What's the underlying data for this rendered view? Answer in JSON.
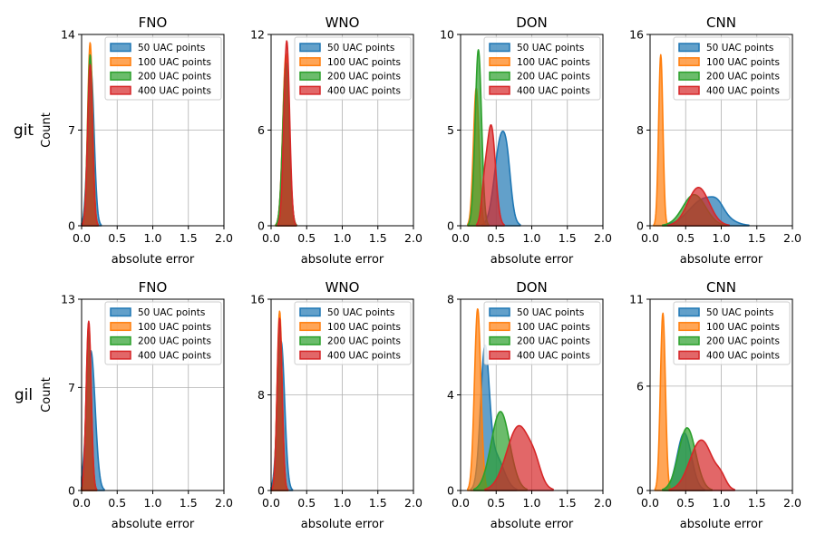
{
  "figure": {
    "row_labels": [
      "git",
      "gil"
    ],
    "ylabel": "Count",
    "xlabel": "absolute error",
    "legend_entries": [
      "50 UAC points",
      "100 UAC points",
      "200 UAC points",
      "400 UAC points"
    ],
    "series_colors": [
      "#1f77b4",
      "#ff7f0e",
      "#2ca02c",
      "#d62728"
    ]
  },
  "chart_data": [
    {
      "type": "area",
      "row": "git",
      "title": "FNO",
      "xlabel": "absolute error",
      "ylabel": "Count",
      "xlim": [
        0,
        2.0
      ],
      "ylim": [
        0,
        14
      ],
      "xticks": [
        "0.0",
        "0.5",
        "1.0",
        "1.5",
        "2.0"
      ],
      "yticks": [
        "0",
        "7",
        "14"
      ],
      "grid": true,
      "legend_position": "top-right",
      "series": [
        {
          "name": "50 UAC points",
          "peaks": [
            {
              "center": 0.13,
              "width": 0.045,
              "height": 11.5
            }
          ]
        },
        {
          "name": "100 UAC points",
          "peaks": [
            {
              "center": 0.12,
              "width": 0.035,
              "height": 13.4
            }
          ]
        },
        {
          "name": "200 UAC points",
          "peaks": [
            {
              "center": 0.12,
              "width": 0.035,
              "height": 12.5
            }
          ]
        },
        {
          "name": "400 UAC points",
          "peaks": [
            {
              "center": 0.12,
              "width": 0.035,
              "height": 11.8
            }
          ]
        }
      ]
    },
    {
      "type": "area",
      "row": "git",
      "title": "WNO",
      "xlabel": "absolute error",
      "ylabel": "",
      "xlim": [
        0,
        2.0
      ],
      "ylim": [
        0,
        12
      ],
      "xticks": [
        "0.0",
        "0.5",
        "1.0",
        "1.5",
        "2.0"
      ],
      "yticks": [
        "0",
        "6",
        "12"
      ],
      "grid": true,
      "legend_position": "top-right",
      "series": [
        {
          "name": "50 UAC points",
          "peaks": [
            {
              "center": 0.21,
              "width": 0.045,
              "height": 10.5
            }
          ]
        },
        {
          "name": "100 UAC points",
          "peaks": [
            {
              "center": 0.21,
              "width": 0.045,
              "height": 10.8
            }
          ]
        },
        {
          "name": "200 UAC points",
          "peaks": [
            {
              "center": 0.21,
              "width": 0.045,
              "height": 10.2
            }
          ]
        },
        {
          "name": "400 UAC points",
          "peaks": [
            {
              "center": 0.22,
              "width": 0.04,
              "height": 11.6
            }
          ]
        }
      ]
    },
    {
      "type": "area",
      "row": "git",
      "title": "DON",
      "xlabel": "absolute error",
      "ylabel": "",
      "xlim": [
        0,
        2.0
      ],
      "ylim": [
        0,
        10
      ],
      "xticks": [
        "0.0",
        "0.5",
        "1.0",
        "1.5",
        "2.0"
      ],
      "yticks": [
        "0",
        "5",
        "10"
      ],
      "grid": true,
      "legend_position": "top-right",
      "series": [
        {
          "name": "50 UAC points",
          "peaks": [
            {
              "center": 0.57,
              "width": 0.09,
              "height": 4.6
            },
            {
              "center": 0.66,
              "width": 0.05,
              "height": 1.2
            }
          ]
        },
        {
          "name": "100 UAC points",
          "peaks": [
            {
              "center": 0.22,
              "width": 0.04,
              "height": 7.2
            }
          ]
        },
        {
          "name": "200 UAC points",
          "peaks": [
            {
              "center": 0.25,
              "width": 0.045,
              "height": 9.2
            }
          ]
        },
        {
          "name": "400 UAC points",
          "peaks": [
            {
              "center": 0.43,
              "width": 0.06,
              "height": 5.2
            },
            {
              "center": 0.33,
              "width": 0.04,
              "height": 1.5
            }
          ]
        }
      ]
    },
    {
      "type": "area",
      "row": "git",
      "title": "CNN",
      "xlabel": "absolute error",
      "ylabel": "",
      "xlim": [
        0,
        2.0
      ],
      "ylim": [
        0,
        16
      ],
      "xticks": [
        "0.0",
        "0.5",
        "1.0",
        "1.5",
        "2.0"
      ],
      "yticks": [
        "0",
        "8",
        "16"
      ],
      "grid": true,
      "legend_position": "top-right",
      "series": [
        {
          "name": "50 UAC points",
          "peaks": [
            {
              "center": 0.78,
              "width": 0.22,
              "height": 2.3
            },
            {
              "center": 0.95,
              "width": 0.08,
              "height": 0.5
            }
          ]
        },
        {
          "name": "100 UAC points",
          "peaks": [
            {
              "center": 0.15,
              "width": 0.03,
              "height": 14.3
            }
          ]
        },
        {
          "name": "200 UAC points",
          "peaks": [
            {
              "center": 0.62,
              "width": 0.16,
              "height": 2.6
            }
          ]
        },
        {
          "name": "400 UAC points",
          "peaks": [
            {
              "center": 0.68,
              "width": 0.15,
              "height": 3.2
            }
          ]
        }
      ]
    },
    {
      "type": "area",
      "row": "gil",
      "title": "FNO",
      "xlabel": "absolute error",
      "ylabel": "Count",
      "xlim": [
        0,
        2.0
      ],
      "ylim": [
        0,
        13
      ],
      "xticks": [
        "0.0",
        "0.5",
        "1.0",
        "1.5",
        "2.0"
      ],
      "yticks": [
        "0",
        "7",
        "13"
      ],
      "grid": true,
      "legend_position": "top-right",
      "series": [
        {
          "name": "50 UAC points",
          "peaks": [
            {
              "center": 0.13,
              "width": 0.06,
              "height": 9.5
            }
          ]
        },
        {
          "name": "100 UAC points",
          "peaks": [
            {
              "center": 0.1,
              "width": 0.035,
              "height": 11.3
            }
          ]
        },
        {
          "name": "200 UAC points",
          "peaks": [
            {
              "center": 0.1,
              "width": 0.035,
              "height": 10.8
            }
          ]
        },
        {
          "name": "400 UAC points",
          "peaks": [
            {
              "center": 0.1,
              "width": 0.035,
              "height": 11.5
            }
          ]
        }
      ]
    },
    {
      "type": "area",
      "row": "gil",
      "title": "WNO",
      "xlabel": "absolute error",
      "ylabel": "",
      "xlim": [
        0,
        2.0
      ],
      "ylim": [
        0,
        16
      ],
      "xticks": [
        "0.0",
        "0.5",
        "1.0",
        "1.5",
        "2.0"
      ],
      "yticks": [
        "0",
        "8",
        "16"
      ],
      "grid": true,
      "legend_position": "top-right",
      "series": [
        {
          "name": "50 UAC points",
          "peaks": [
            {
              "center": 0.14,
              "width": 0.05,
              "height": 12.5
            }
          ]
        },
        {
          "name": "100 UAC points",
          "peaks": [
            {
              "center": 0.12,
              "width": 0.035,
              "height": 15.0
            }
          ]
        },
        {
          "name": "200 UAC points",
          "peaks": [
            {
              "center": 0.12,
              "width": 0.035,
              "height": 14.0
            }
          ]
        },
        {
          "name": "400 UAC points",
          "peaks": [
            {
              "center": 0.12,
              "width": 0.035,
              "height": 14.4
            }
          ]
        }
      ]
    },
    {
      "type": "area",
      "row": "gil",
      "title": "DON",
      "xlabel": "absolute error",
      "ylabel": "",
      "xlim": [
        0,
        2.0
      ],
      "ylim": [
        0,
        8
      ],
      "xticks": [
        "0.0",
        "0.5",
        "1.0",
        "1.5",
        "2.0"
      ],
      "yticks": [
        "0",
        "4",
        "8"
      ],
      "grid": true,
      "legend_position": "top-right",
      "series": [
        {
          "name": "50 UAC points",
          "peaks": [
            {
              "center": 0.34,
              "width": 0.06,
              "height": 5.3
            },
            {
              "center": 0.48,
              "width": 0.12,
              "height": 1.5
            }
          ]
        },
        {
          "name": "100 UAC points",
          "peaks": [
            {
              "center": 0.24,
              "width": 0.045,
              "height": 7.6
            }
          ]
        },
        {
          "name": "200 UAC points",
          "peaks": [
            {
              "center": 0.56,
              "width": 0.13,
              "height": 3.3
            }
          ]
        },
        {
          "name": "400 UAC points",
          "peaks": [
            {
              "center": 0.82,
              "width": 0.17,
              "height": 2.7
            },
            {
              "center": 1.05,
              "width": 0.08,
              "height": 0.5
            }
          ]
        }
      ]
    },
    {
      "type": "area",
      "row": "gil",
      "title": "CNN",
      "xlabel": "absolute error",
      "ylabel": "",
      "xlim": [
        0,
        2.0
      ],
      "ylim": [
        0,
        11
      ],
      "xticks": [
        "0.0",
        "0.5",
        "1.0",
        "1.5",
        "2.0"
      ],
      "yticks": [
        "0",
        "6",
        "11"
      ],
      "grid": true,
      "legend_position": "top-right",
      "series": [
        {
          "name": "50 UAC points",
          "peaks": [
            {
              "center": 0.48,
              "width": 0.1,
              "height": 3.3
            }
          ]
        },
        {
          "name": "100 UAC points",
          "peaks": [
            {
              "center": 0.18,
              "width": 0.035,
              "height": 10.2
            }
          ]
        },
        {
          "name": "200 UAC points",
          "peaks": [
            {
              "center": 0.52,
              "width": 0.12,
              "height": 3.6
            }
          ]
        },
        {
          "name": "400 UAC points",
          "peaks": [
            {
              "center": 0.72,
              "width": 0.16,
              "height": 2.9
            },
            {
              "center": 1.0,
              "width": 0.07,
              "height": 0.5
            }
          ]
        }
      ]
    }
  ]
}
